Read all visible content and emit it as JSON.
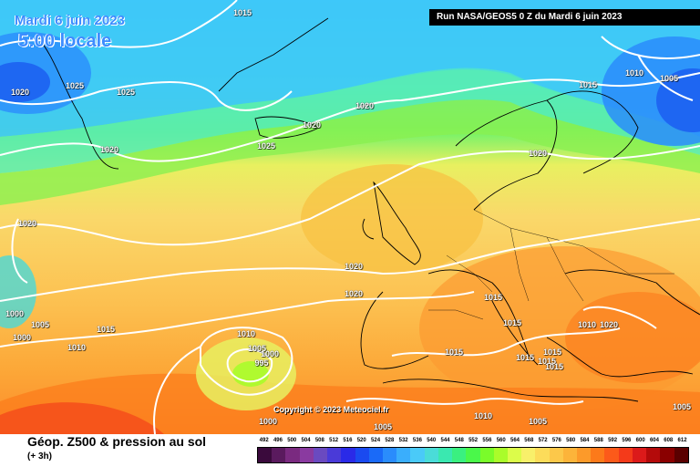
{
  "map": {
    "date_title": "Mardi 6 juin 2023",
    "time_title": "5:00 locale",
    "run_info": "Run NASA/GEOS5 0 Z du Mardi 6 juin 2023",
    "copyright": "Copyright © 2023 Meteociel.fr",
    "isobar_labels": [
      "1015",
      "1025",
      "1025",
      "1020",
      "1020",
      "1020",
      "1025",
      "1020",
      "1020",
      "1015",
      "1010",
      "1005",
      "1020",
      "1020",
      "1020",
      "1015",
      "1015",
      "1000",
      "1005",
      "1000",
      "1015",
      "1010",
      "1010",
      "1005",
      "1000",
      "995",
      "1015",
      "1015",
      "1015",
      "1015",
      "1015",
      "1020",
      "1010",
      "1005",
      "1000",
      "1005",
      "1010",
      "1005"
    ]
  },
  "legend": {
    "title": "Géop. Z500 & pression au sol",
    "subtitle": "(+ 3h)",
    "scale_values": [
      "492",
      "496",
      "500",
      "504",
      "508",
      "512",
      "516",
      "520",
      "524",
      "528",
      "532",
      "536",
      "540",
      "544",
      "548",
      "552",
      "556",
      "560",
      "564",
      "568",
      "572",
      "576",
      "580",
      "584",
      "588",
      "592",
      "596",
      "600",
      "604",
      "608",
      "612"
    ],
    "scale_colors": [
      "#3a0a3c",
      "#5a1a5e",
      "#7a2a80",
      "#8a3aa0",
      "#6a4ac0",
      "#4a3ad8",
      "#2a2ae8",
      "#1a4af0",
      "#1a6af8",
      "#2a8cfc",
      "#3aaefc",
      "#4acaf8",
      "#4adcd8",
      "#3ae8b0",
      "#3af080",
      "#4af84a",
      "#7afc2a",
      "#aafc2a",
      "#dcfc4a",
      "#f8f06a",
      "#fcdc5a",
      "#fcc84a",
      "#fcb43a",
      "#fc9a2a",
      "#fc7a1a",
      "#fc5a1a",
      "#f43a1a",
      "#dc1a1a",
      "#b40a0a",
      "#8a0000",
      "#5a0000"
    ]
  }
}
